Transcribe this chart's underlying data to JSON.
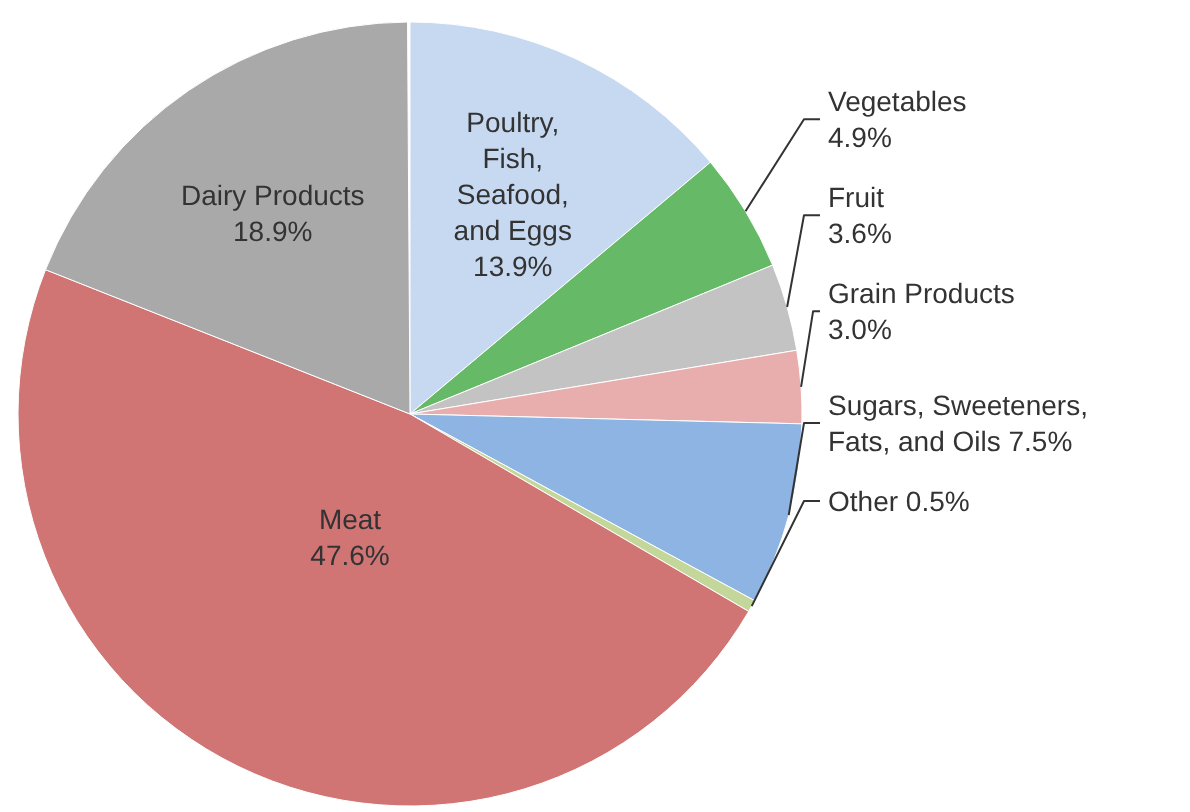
{
  "chart_data": {
    "type": "pie",
    "categories": [
      "Poultry, Fish, Seafood, and Eggs",
      "Vegetables",
      "Fruit",
      "Grain Products",
      "Sugars, Sweeteners, Fats, and Oils",
      "Other",
      "Meat",
      "Dairy Products"
    ],
    "values": [
      13.9,
      4.9,
      3.6,
      3.0,
      7.5,
      0.5,
      47.6,
      18.9
    ],
    "value_labels": [
      "13.9%",
      "4.9%",
      "3.6%",
      "3.0%",
      "7.5%",
      "0.5%",
      "47.6%",
      "18.9%"
    ],
    "colors": [
      "#c6d9f1",
      "#66b966",
      "#c3c3c3",
      "#e8aeae",
      "#8db4e2",
      "#c4d79b",
      "#d07474",
      "#a9a9a9"
    ]
  }
}
